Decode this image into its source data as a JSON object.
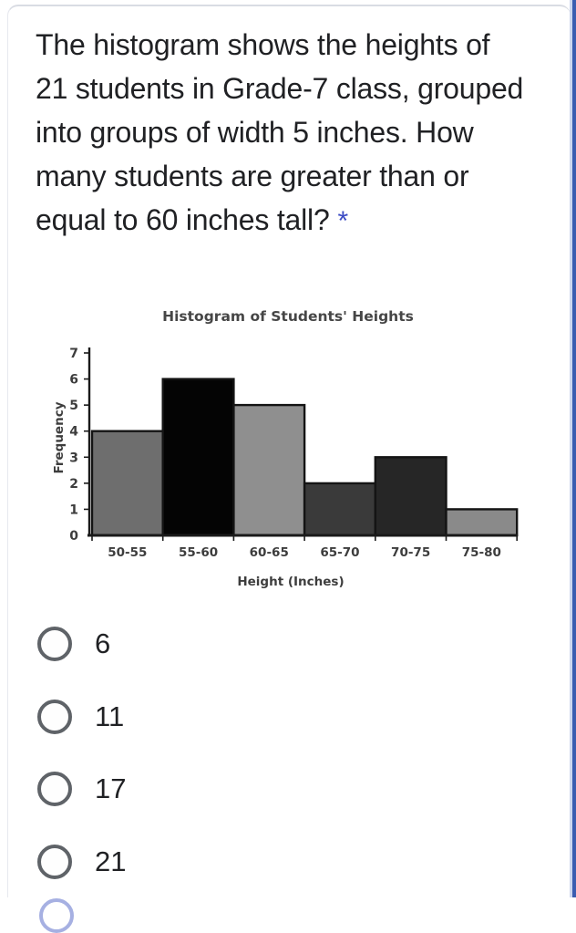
{
  "page": {
    "card_border_color": "#d9dce3",
    "edge_light_color": "#ccd6ee",
    "edge_dark_color": "#3a5cb0",
    "background": "#ffffff"
  },
  "question": {
    "lines": [
      "The histogram shows the heights of",
      "21 students in Grade-7 class, grouped",
      "into groups of width 5 inches. How",
      "many students are greater than or",
      "equal to 60 inches tall?"
    ],
    "full_text": "The histogram shows the heights of 21 students in Grade-7 class, grouped into groups of width 5 inches. How many students are greater than or equal to 60 inches tall?",
    "required_marker": "*",
    "required_color": "#3b4bc4",
    "text_color": "#202124"
  },
  "chart_data": {
    "type": "bar",
    "title": "Histogram of Students' Heights",
    "xlabel": "Height (Inches)",
    "ylabel": "Frequency",
    "categories": [
      "50-55",
      "55-60",
      "60-65",
      "65-70",
      "70-75",
      "75-80"
    ],
    "values": [
      4,
      6,
      5,
      2,
      3,
      1
    ],
    "bar_colors": [
      "#6e6e6e",
      "#040404",
      "#8f8f8f",
      "#3a3a3a",
      "#262626",
      "#8a8a8a"
    ],
    "bar_border_color": "#141414",
    "ylim": [
      0,
      7
    ],
    "yticks": [
      0,
      1,
      2,
      3,
      4,
      5,
      6,
      7
    ],
    "grid": false,
    "legend": null,
    "axis_color": "#1a1a1a",
    "text_color": "#3d3d3d"
  },
  "options": [
    {
      "label": "6"
    },
    {
      "label": "11"
    },
    {
      "label": "17"
    },
    {
      "label": "21"
    }
  ],
  "partial_option": {
    "note": "top arc of fifth radio visible at bottom edge",
    "ring_color": "#a6b0e2"
  }
}
